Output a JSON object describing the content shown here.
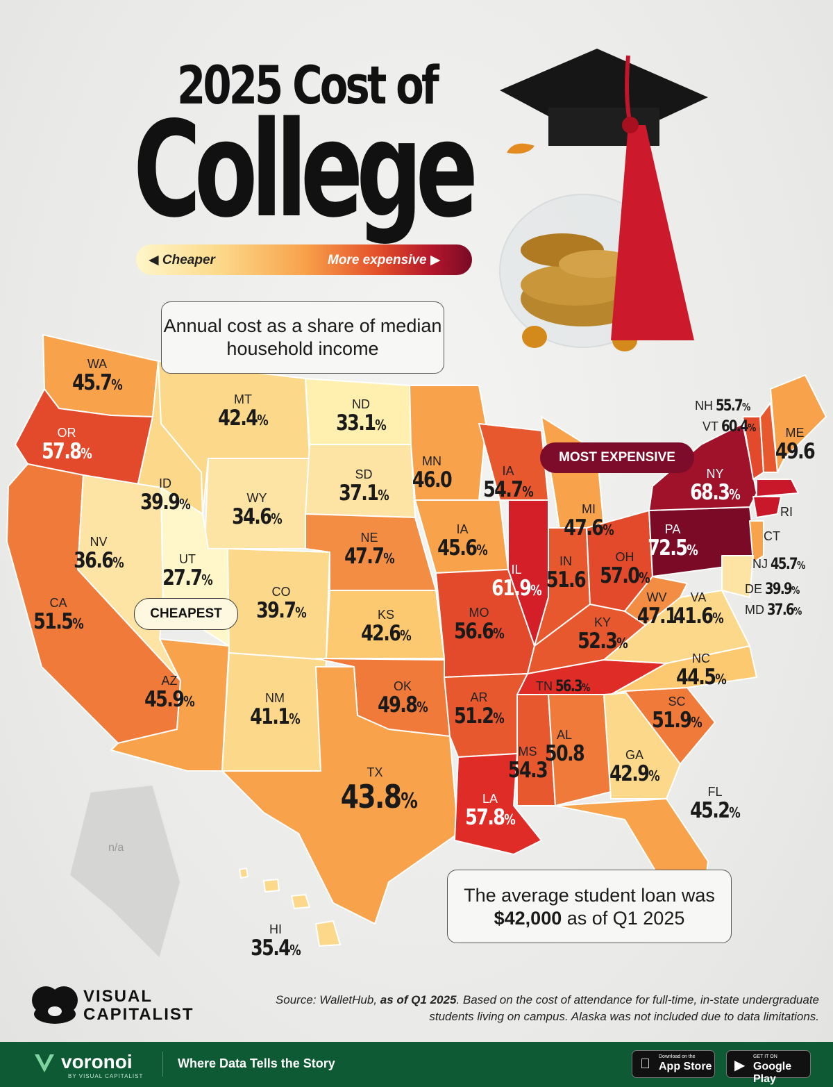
{
  "title": {
    "line1": "2025 Cost of",
    "line2": "College"
  },
  "legend": {
    "left": "◀ Cheaper",
    "right": "More expensive ▶"
  },
  "subtitle_box": "Annual cost as a share of median household income",
  "callouts": {
    "most": "MOST EXPENSIVE",
    "cheapest": "CHEAPEST"
  },
  "loan_box": {
    "prefix": "The average student loan was ",
    "amount": "$42,000",
    "suffix": " as of Q1 2025"
  },
  "alaska": "n/a",
  "pct_sign": "%",
  "states": [
    {
      "abbr": "WA",
      "value": 45.7,
      "pct": true
    },
    {
      "abbr": "OR",
      "value": 57.8,
      "pct": true
    },
    {
      "abbr": "CA",
      "value": 51.5,
      "pct": true
    },
    {
      "abbr": "ID",
      "value": 39.9,
      "pct": true
    },
    {
      "abbr": "NV",
      "value": 36.6,
      "pct": true
    },
    {
      "abbr": "MT",
      "value": 42.4,
      "pct": true
    },
    {
      "abbr": "WY",
      "value": 34.6,
      "pct": true
    },
    {
      "abbr": "UT",
      "value": 27.7,
      "pct": true
    },
    {
      "abbr": "AZ",
      "value": 45.9,
      "pct": true
    },
    {
      "abbr": "CO",
      "value": 39.7,
      "pct": true
    },
    {
      "abbr": "NM",
      "value": 41.1,
      "pct": true
    },
    {
      "abbr": "ND",
      "value": 33.1,
      "pct": true
    },
    {
      "abbr": "SD",
      "value": 37.1,
      "pct": true
    },
    {
      "abbr": "NE",
      "value": 47.7,
      "pct": true
    },
    {
      "abbr": "KS",
      "value": 42.6,
      "pct": true
    },
    {
      "abbr": "OK",
      "value": 49.8,
      "pct": true
    },
    {
      "abbr": "TX",
      "value": 43.8,
      "pct": true
    },
    {
      "abbr": "MN",
      "value": 46.0,
      "pct": false
    },
    {
      "abbr": "IA",
      "value": 45.6,
      "pct": true
    },
    {
      "abbr": "MO",
      "value": 56.6,
      "pct": true
    },
    {
      "abbr": "AR",
      "value": 51.2,
      "pct": true
    },
    {
      "abbr": "LA",
      "value": 57.8,
      "pct": true
    },
    {
      "abbr": "IA",
      "value": 54.7,
      "pct": true
    },
    {
      "abbr": "IL",
      "value": 61.9,
      "pct": true
    },
    {
      "abbr": "MI",
      "value": 47.6,
      "pct": true
    },
    {
      "abbr": "IN",
      "value": 51.6,
      "pct": false
    },
    {
      "abbr": "OH",
      "value": 57.0,
      "pct": true
    },
    {
      "abbr": "KY",
      "value": 52.3,
      "pct": true
    },
    {
      "abbr": "TN",
      "value": 56.3,
      "pct": true
    },
    {
      "abbr": "MS",
      "value": 54.3,
      "pct": false
    },
    {
      "abbr": "AL",
      "value": 50.8,
      "pct": false
    },
    {
      "abbr": "GA",
      "value": 42.9,
      "pct": true
    },
    {
      "abbr": "FL",
      "value": 45.2,
      "pct": true
    },
    {
      "abbr": "SC",
      "value": 51.9,
      "pct": true
    },
    {
      "abbr": "NC",
      "value": 44.5,
      "pct": true
    },
    {
      "abbr": "VA",
      "value": 41.6,
      "pct": true
    },
    {
      "abbr": "WV",
      "value": 47.1,
      "pct": false
    },
    {
      "abbr": "PA",
      "value": 72.5,
      "pct": true
    },
    {
      "abbr": "NY",
      "value": 68.3,
      "pct": true
    },
    {
      "abbr": "ME",
      "value": 49.6,
      "pct": false
    },
    {
      "abbr": "NH",
      "value": 55.7,
      "pct": true
    },
    {
      "abbr": "VT",
      "value": 60.4,
      "pct": true
    },
    {
      "abbr": "NJ",
      "value": 45.7,
      "pct": true
    },
    {
      "abbr": "DE",
      "value": 39.9,
      "pct": true
    },
    {
      "abbr": "MD",
      "value": 37.6,
      "pct": true
    },
    {
      "abbr": "HI",
      "value": 35.4,
      "pct": true
    },
    {
      "abbr": "RI",
      "value": null,
      "pct": false
    },
    {
      "abbr": "CT",
      "value": null,
      "pct": false
    }
  ],
  "source": {
    "label": "Source: WalletHub, ",
    "date": "as of Q1 2025",
    "note": ". Based on the cost of attendance for full-time, in-state undergraduate students living on campus. Alaska was not included due to data limitations."
  },
  "brand": {
    "line1": "VISUAL",
    "line2": "CAPITALIST"
  },
  "footer": {
    "logo": "voronoi",
    "logo_sub": "BY VISUAL CAPITALIST",
    "tagline": "Where Data Tells the Story",
    "app_store_small": "Download on the",
    "app_store": "App Store",
    "google_small": "GET IT ON",
    "google": "Google Play"
  },
  "colors": {
    "cheapest": "#fff6c9",
    "low": "#fcd98a",
    "mid": "#f8a24b",
    "high": "#e44f2a",
    "very_high": "#b3162b",
    "max": "#7a0a26",
    "footer_green": "#0d5a35"
  }
}
